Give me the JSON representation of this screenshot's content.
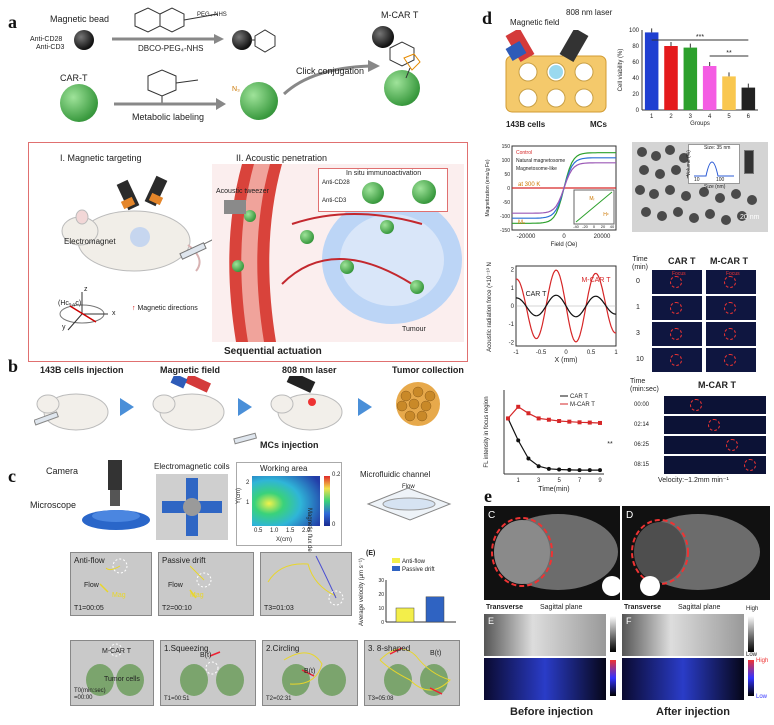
{
  "panels": {
    "a": "a",
    "b": "b",
    "c": "c",
    "d": "d",
    "e": "e"
  },
  "a": {
    "magnetic_bead": "Magnetic bead",
    "anti_cd28": "Anti-CD28",
    "anti_cd3": "Anti-CD3",
    "dbco": "DBCO-PEG₄-NHS",
    "peg_nhs": "PEG₄-NHS",
    "mcart": "M-CAR T",
    "cart": "CAR-T",
    "click": "Click conjugation",
    "metabolic": "Metabolic labeling",
    "n3": "N₃",
    "magnetic_targeting": "I. Magnetic targeting",
    "acoustic_penetration": "II. Acoustic penetration",
    "in_situ": "In situ immunoactivation",
    "acoustic_tweezer": "Acoustic tweezer",
    "electromagnet": "Electromagnet",
    "hcomb": "(Hcₓ,ᵧc)",
    "magnetic_directions": "Magnetic directions",
    "tumour": "Tumour",
    "sequential": "Sequential actuation",
    "ax_x": "x",
    "ax_y": "y",
    "ax_z": "z"
  },
  "b": {
    "step1": "143B cells injection",
    "step2": "Magnetic field",
    "step3": "808 nm laser",
    "step4": "Tumor collection",
    "mcs": "MCs injection"
  },
  "c": {
    "camera": "Camera",
    "microscope": "Microscope",
    "coils": "Electromagnetic coils",
    "working_area": "Working area",
    "microfluidic": "Microfluidic channel",
    "flow": "Flow",
    "cb_label": "Magnetic flux density (tesla)",
    "cb_top": "0.2",
    "cb_bottom": "0",
    "heat_ylabel": "Y(cm)",
    "heat_xlabel": "X(cm)",
    "heat_xticks": [
      "0.5",
      "1.0",
      "1.5",
      "2.0"
    ],
    "heat_yticks": [
      "2",
      "1"
    ],
    "frames1": [
      {
        "title": "Anti-flow",
        "time": "T1=00:05"
      },
      {
        "title": "Passive drift",
        "time": "T2=00:10"
      },
      {
        "title": "",
        "time": "T3=01:03"
      }
    ],
    "flow_word": "Flow",
    "mag_word": "Mag",
    "E_label": "(E)",
    "legend": [
      "Anti-flow",
      "Passive drift"
    ],
    "bar_ylabel": "Average velocity (μm s⁻¹)",
    "bar_yticks": [
      "30",
      "20",
      "10",
      "0"
    ],
    "frames2": [
      {
        "title": "M-CAR T",
        "time": "T0(min:sec)\n=00:00",
        "sub": "Tumor cells"
      },
      {
        "title": "1.Squeezing",
        "time": "T1=00:51",
        "sub": ""
      },
      {
        "title": "2.Circling",
        "time": "T2=02:31",
        "sub": ""
      },
      {
        "title": "3.  8-shaped",
        "time": "T3=05:08",
        "sub": ""
      }
    ],
    "bt": "B(t)"
  },
  "d": {
    "magnetic_field": "Magnetic field",
    "laser": "808 nm laser",
    "cells": "143B cells",
    "mcs": "MCs",
    "viability_ylabel": "Cell viability (%)",
    "viability_xlabel": "Groups",
    "viability_yticks": [
      "100",
      "80",
      "60",
      "40",
      "20",
      "0"
    ],
    "sig1": "***",
    "sig2": "**",
    "mag_ylabel": "Magnetization (emu/g Fe)",
    "mag_xlabel": "Field (Oe)",
    "mag_xticks": [
      "-20000",
      "0",
      "20000"
    ],
    "mag_yticks": [
      "150",
      "100",
      "50",
      "0",
      "-50",
      "-100",
      "-150"
    ],
    "mag_legend": [
      "Control",
      "Natural magnetosome",
      "Magnetosome-like"
    ],
    "at_temp": "at 300 K",
    "ms": "Mₛ",
    "mr": "Mᵣ",
    "hc": "Hᶜ",
    "inset_ticks": [
      "-40",
      "-20",
      "0",
      "20",
      "40"
    ],
    "tem_scale": "20 nm",
    "dist_title": "Size: 35 nm",
    "dist_ylabel": "Volume (%)",
    "dist_xlabel": "Size (nm)",
    "dist_xticks": [
      "10",
      "100"
    ],
    "arf_ylabel": "Acoustic radiation force (×10⁻¹⁰ N)",
    "arf_xlabel": "X (mm)",
    "arf_xticks": [
      "-1",
      "-0.5",
      "0",
      "0.5",
      "1"
    ],
    "arf_yticks": [
      "2",
      "1",
      "0",
      "-1",
      "-2"
    ],
    "arf_mcart": "M-CAR T",
    "arf_cart": "CAR T",
    "time_header": "Time\n(min)",
    "col_cart": "CAR T",
    "col_mcart": "M-CAR T",
    "time_rows": [
      "0",
      "1",
      "3",
      "10"
    ],
    "focus": "Focus",
    "fl_ylabel": "FL intensity in focus region",
    "fl_xlabel": "Time(min)",
    "fl_xticks": [
      "1",
      "3",
      "5",
      "7",
      "9"
    ],
    "fl_legend": [
      "CAR T",
      "M-CAR T"
    ],
    "fl_sig": "**",
    "track_time_header": "Time\n(min:sec)",
    "track_title": "M-CAR T",
    "track_times": [
      "00:00",
      "02:14",
      "06:25",
      "08:15"
    ],
    "velocity": "Velocity:~1.2mm min⁻¹"
  },
  "e": {
    "C": "C",
    "D": "D",
    "E": "E",
    "F": "F",
    "transverse": "Transverse",
    "sagittal": "Sagittal plane",
    "high": "High",
    "low": "Low",
    "before": "Before injection",
    "after": "After injection"
  },
  "chart_data": [
    {
      "type": "bar",
      "title": "",
      "xlabel": "Groups",
      "ylabel": "Cell viability (%)",
      "categories": [
        "1",
        "2",
        "3",
        "4",
        "5",
        "6"
      ],
      "values": [
        97,
        80,
        78,
        55,
        42,
        28
      ],
      "colors": [
        "#1f3fd1",
        "#e41a1c",
        "#2ca02c",
        "#f45ce3",
        "#f9c74f",
        "#222222"
      ],
      "ylim": [
        0,
        100
      ]
    },
    {
      "type": "bar",
      "title": "",
      "xlabel": "",
      "ylabel": "Average velocity (μm s⁻¹)",
      "categories": [
        "Anti-flow",
        "Passive drift"
      ],
      "values": [
        10,
        18
      ],
      "colors": [
        "#f3ee4a",
        "#2f63c2"
      ],
      "ylim": [
        0,
        30
      ]
    },
    {
      "type": "line",
      "xlabel": "Time(min)",
      "ylabel": "FL intensity in focus region",
      "x": [
        0,
        1,
        2,
        3,
        4,
        5,
        6,
        7,
        8,
        9
      ],
      "series": [
        {
          "name": "CAR T",
          "values": [
            430,
            260,
            120,
            60,
            40,
            35,
            32,
            30,
            30,
            30
          ],
          "color": "#111111"
        },
        {
          "name": "M-CAR T",
          "values": [
            430,
            520,
            470,
            430,
            420,
            410,
            405,
            400,
            398,
            395
          ],
          "color": "#d62728"
        }
      ],
      "ylim": [
        0,
        650
      ]
    },
    {
      "type": "line",
      "xlabel": "X (mm)",
      "ylabel": "Acoustic radiation force (×10⁻¹⁰ N)",
      "xlim": [
        -1,
        1
      ],
      "ylim": [
        -2.2,
        2.2
      ],
      "series": [
        {
          "name": "M-CAR T",
          "color": "#d62728",
          "amp": 2.0
        },
        {
          "name": "CAR T",
          "color": "#111111",
          "amp": 0.6
        }
      ]
    }
  ]
}
